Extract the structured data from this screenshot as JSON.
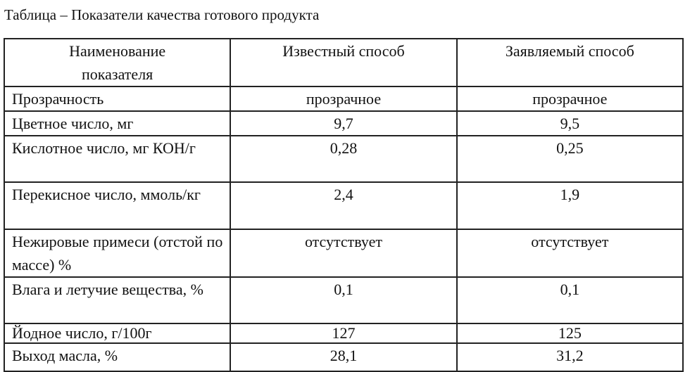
{
  "caption": "Таблица – Показатели качества готового продукта",
  "table": {
    "headers": [
      "Наименование показателя",
      "Известный способ",
      "Заявляемый способ"
    ],
    "rows": [
      [
        "Прозрачность",
        "прозрачное",
        "прозрачное"
      ],
      [
        "Цветное число, мг",
        "9,7",
        "9,5"
      ],
      [
        "Кислотное число, мг КОН/г",
        "0,28",
        "0,25"
      ],
      [
        "Перекисное число, ммоль/кг",
        "2,4",
        "1,9"
      ],
      [
        "Нежировые примеси (отстой по массе) %",
        "отсутствует",
        "отсутствует"
      ],
      [
        "Влага и летучие вещества, %",
        "0,1",
        "0,1"
      ],
      [
        "Йодное число, г/100г",
        "127",
        "125"
      ],
      [
        "Выход масла, %",
        "28,1",
        "31,2"
      ]
    ]
  }
}
